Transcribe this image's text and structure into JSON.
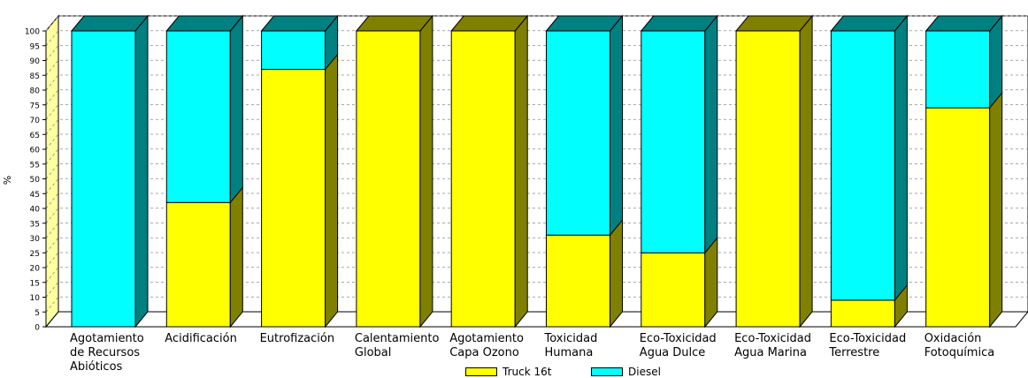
{
  "chart_data": {
    "type": "bar",
    "stacked": true,
    "percent": true,
    "three_d": true,
    "ylabel": "%",
    "ylim": [
      0,
      100
    ],
    "yticks": [
      0,
      5,
      10,
      15,
      20,
      25,
      30,
      35,
      40,
      45,
      50,
      55,
      60,
      65,
      70,
      75,
      80,
      85,
      90,
      95,
      100
    ],
    "grid": true,
    "legend_position": "bottom",
    "categories": [
      "Agotamiento\nde Recursos\nAbióticos",
      "Acidificación",
      "Eutrofización",
      "Calentamiento\nGlobal",
      "Agotamiento\nCapa Ozono",
      "Toxicidad\nHumana",
      "Eco-Toxicidad\nAgua Dulce",
      "Eco-Toxicidad\nAgua Marina",
      "Eco-Toxicidad\nTerrestre",
      "Oxidación\nFotoquímica"
    ],
    "series": [
      {
        "name": "Truck 16t",
        "color": "#ffff00",
        "side_color": "#808000",
        "values": [
          0,
          42,
          87,
          100,
          100,
          31,
          25,
          100,
          9,
          74
        ]
      },
      {
        "name": "Diesel",
        "color": "#00ffff",
        "side_color": "#008080",
        "values": [
          100,
          58,
          13,
          0,
          0,
          69,
          75,
          0,
          91,
          26
        ]
      }
    ]
  }
}
